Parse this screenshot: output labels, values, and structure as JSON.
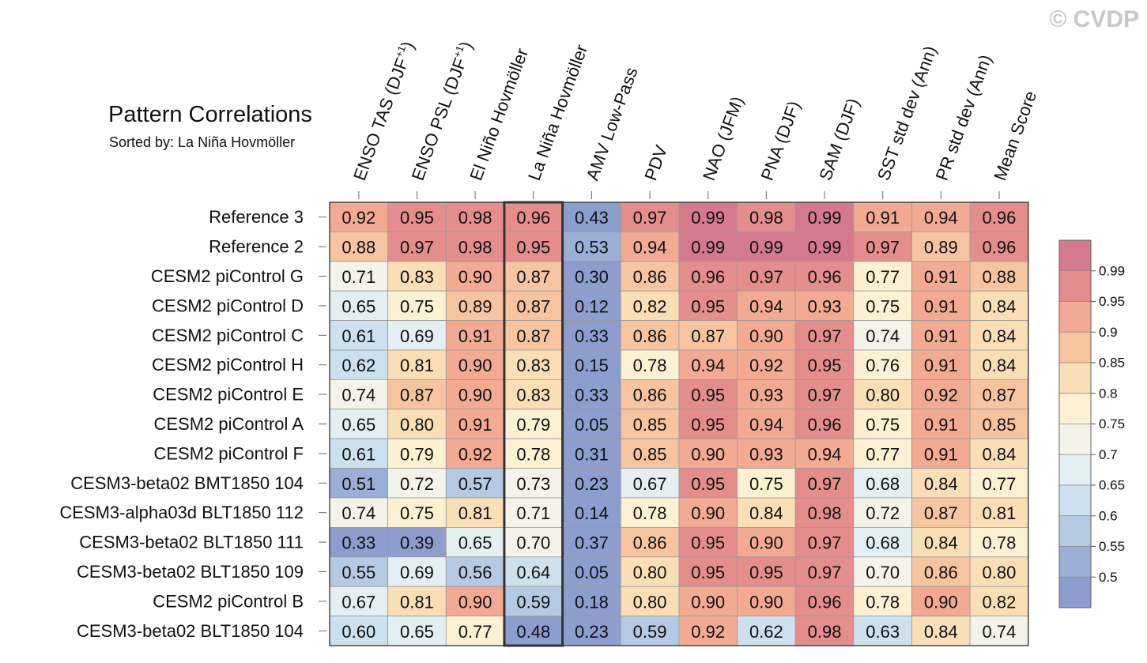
{
  "title": "Pattern Correlations",
  "subtitle": "Sorted by: La Niña Hovmöller",
  "watermark": "© CVDP",
  "chart_data": {
    "type": "heatmap",
    "title": "Pattern Correlations",
    "subtitle": "Sorted by: La Niña Hovmöller",
    "sorted_by_column": 3,
    "columns": [
      {
        "text": "ENSO TAS (DJF",
        "sup": "+1",
        "close": ")"
      },
      {
        "text": "ENSO PSL (DJF",
        "sup": "+1",
        "close": ")"
      },
      {
        "text": "El Niño Hovmöller"
      },
      {
        "text": "La Niña Hovmöller"
      },
      {
        "text": "AMV Low-Pass"
      },
      {
        "text": "PDV"
      },
      {
        "text": "NAO (JFM)"
      },
      {
        "text": "PNA (DJF)"
      },
      {
        "text": "SAM (DJF)"
      },
      {
        "text": "SST std dev (Ann)"
      },
      {
        "text": "PR std dev (Ann)"
      },
      {
        "text": "Mean Score"
      }
    ],
    "rows": [
      {
        "label": "Reference 3",
        "values": [
          "0.92",
          "0.95",
          "0.98",
          "0.96",
          "0.43",
          "0.97",
          "0.99",
          "0.98",
          "0.99",
          "0.91",
          "0.94",
          "0.96"
        ]
      },
      {
        "label": "Reference 2",
        "values": [
          "0.88",
          "0.97",
          "0.98",
          "0.95",
          "0.53",
          "0.94",
          "0.99",
          "0.99",
          "0.99",
          "0.97",
          "0.89",
          "0.96"
        ]
      },
      {
        "label": "CESM2 piControl G",
        "values": [
          "0.71",
          "0.83",
          "0.90",
          "0.87",
          "0.30",
          "0.86",
          "0.96",
          "0.97",
          "0.96",
          "0.77",
          "0.91",
          "0.88"
        ]
      },
      {
        "label": "CESM2 piControl D",
        "values": [
          "0.65",
          "0.75",
          "0.89",
          "0.87",
          "0.12",
          "0.82",
          "0.95",
          "0.94",
          "0.93",
          "0.75",
          "0.91",
          "0.84"
        ]
      },
      {
        "label": "CESM2 piControl C",
        "values": [
          "0.61",
          "0.69",
          "0.91",
          "0.87",
          "0.33",
          "0.86",
          "0.87",
          "0.90",
          "0.97",
          "0.74",
          "0.91",
          "0.84"
        ]
      },
      {
        "label": "CESM2 piControl H",
        "values": [
          "0.62",
          "0.81",
          "0.90",
          "0.83",
          "0.15",
          "0.78",
          "0.94",
          "0.92",
          "0.95",
          "0.76",
          "0.91",
          "0.84"
        ]
      },
      {
        "label": "CESM2 piControl E",
        "values": [
          "0.74",
          "0.87",
          "0.90",
          "0.83",
          "0.33",
          "0.86",
          "0.95",
          "0.93",
          "0.97",
          "0.80",
          "0.92",
          "0.87"
        ]
      },
      {
        "label": "CESM2 piControl A",
        "values": [
          "0.65",
          "0.80",
          "0.91",
          "0.79",
          "0.05",
          "0.85",
          "0.95",
          "0.94",
          "0.96",
          "0.75",
          "0.91",
          "0.85"
        ]
      },
      {
        "label": "CESM2 piControl F",
        "values": [
          "0.61",
          "0.79",
          "0.92",
          "0.78",
          "0.31",
          "0.85",
          "0.90",
          "0.93",
          "0.94",
          "0.77",
          "0.91",
          "0.84"
        ]
      },
      {
        "label": "CESM3-beta02 BMT1850 104",
        "values": [
          "0.51",
          "0.72",
          "0.57",
          "0.73",
          "0.23",
          "0.67",
          "0.95",
          "0.75",
          "0.97",
          "0.68",
          "0.84",
          "0.77"
        ]
      },
      {
        "label": "CESM3-alpha03d BLT1850 112",
        "values": [
          "0.74",
          "0.75",
          "0.81",
          "0.71",
          "0.14",
          "0.78",
          "0.90",
          "0.84",
          "0.98",
          "0.72",
          "0.87",
          "0.81"
        ]
      },
      {
        "label": "CESM3-beta02 BLT1850 111",
        "values": [
          "0.33",
          "0.39",
          "0.65",
          "0.70",
          "0.37",
          "0.86",
          "0.95",
          "0.90",
          "0.97",
          "0.68",
          "0.84",
          "0.78"
        ]
      },
      {
        "label": "CESM3-beta02 BLT1850 109",
        "values": [
          "0.55",
          "0.69",
          "0.56",
          "0.64",
          "0.05",
          "0.80",
          "0.95",
          "0.95",
          "0.97",
          "0.70",
          "0.86",
          "0.80"
        ]
      },
      {
        "label": "CESM2 piControl B",
        "values": [
          "0.67",
          "0.81",
          "0.90",
          "0.59",
          "0.18",
          "0.80",
          "0.90",
          "0.90",
          "0.96",
          "0.78",
          "0.90",
          "0.82"
        ]
      },
      {
        "label": "CESM3-beta02 BLT1850 104",
        "values": [
          "0.60",
          "0.65",
          "0.77",
          "0.48",
          "0.23",
          "0.59",
          "0.92",
          "0.62",
          "0.98",
          "0.63",
          "0.84",
          "0.74"
        ]
      }
    ],
    "colorbar": {
      "levels": [
        "0.99",
        "0.95",
        "0.9",
        "0.85",
        "0.8",
        "0.75",
        "0.7",
        "0.65",
        "0.6",
        "0.55",
        "0.5"
      ],
      "thresholds": [
        0.99,
        0.95,
        0.9,
        0.85,
        0.8,
        0.75,
        0.7,
        0.65,
        0.6,
        0.55,
        0.5
      ],
      "colors": [
        "#d47a8e",
        "#e48d8d",
        "#f2aa92",
        "#f7c4a0",
        "#fadeb6",
        "#fcf1d2",
        "#f3f3ea",
        "#e3eff3",
        "#cce0ee",
        "#b4cae2",
        "#9aaed6",
        "#8c9dce"
      ]
    }
  }
}
